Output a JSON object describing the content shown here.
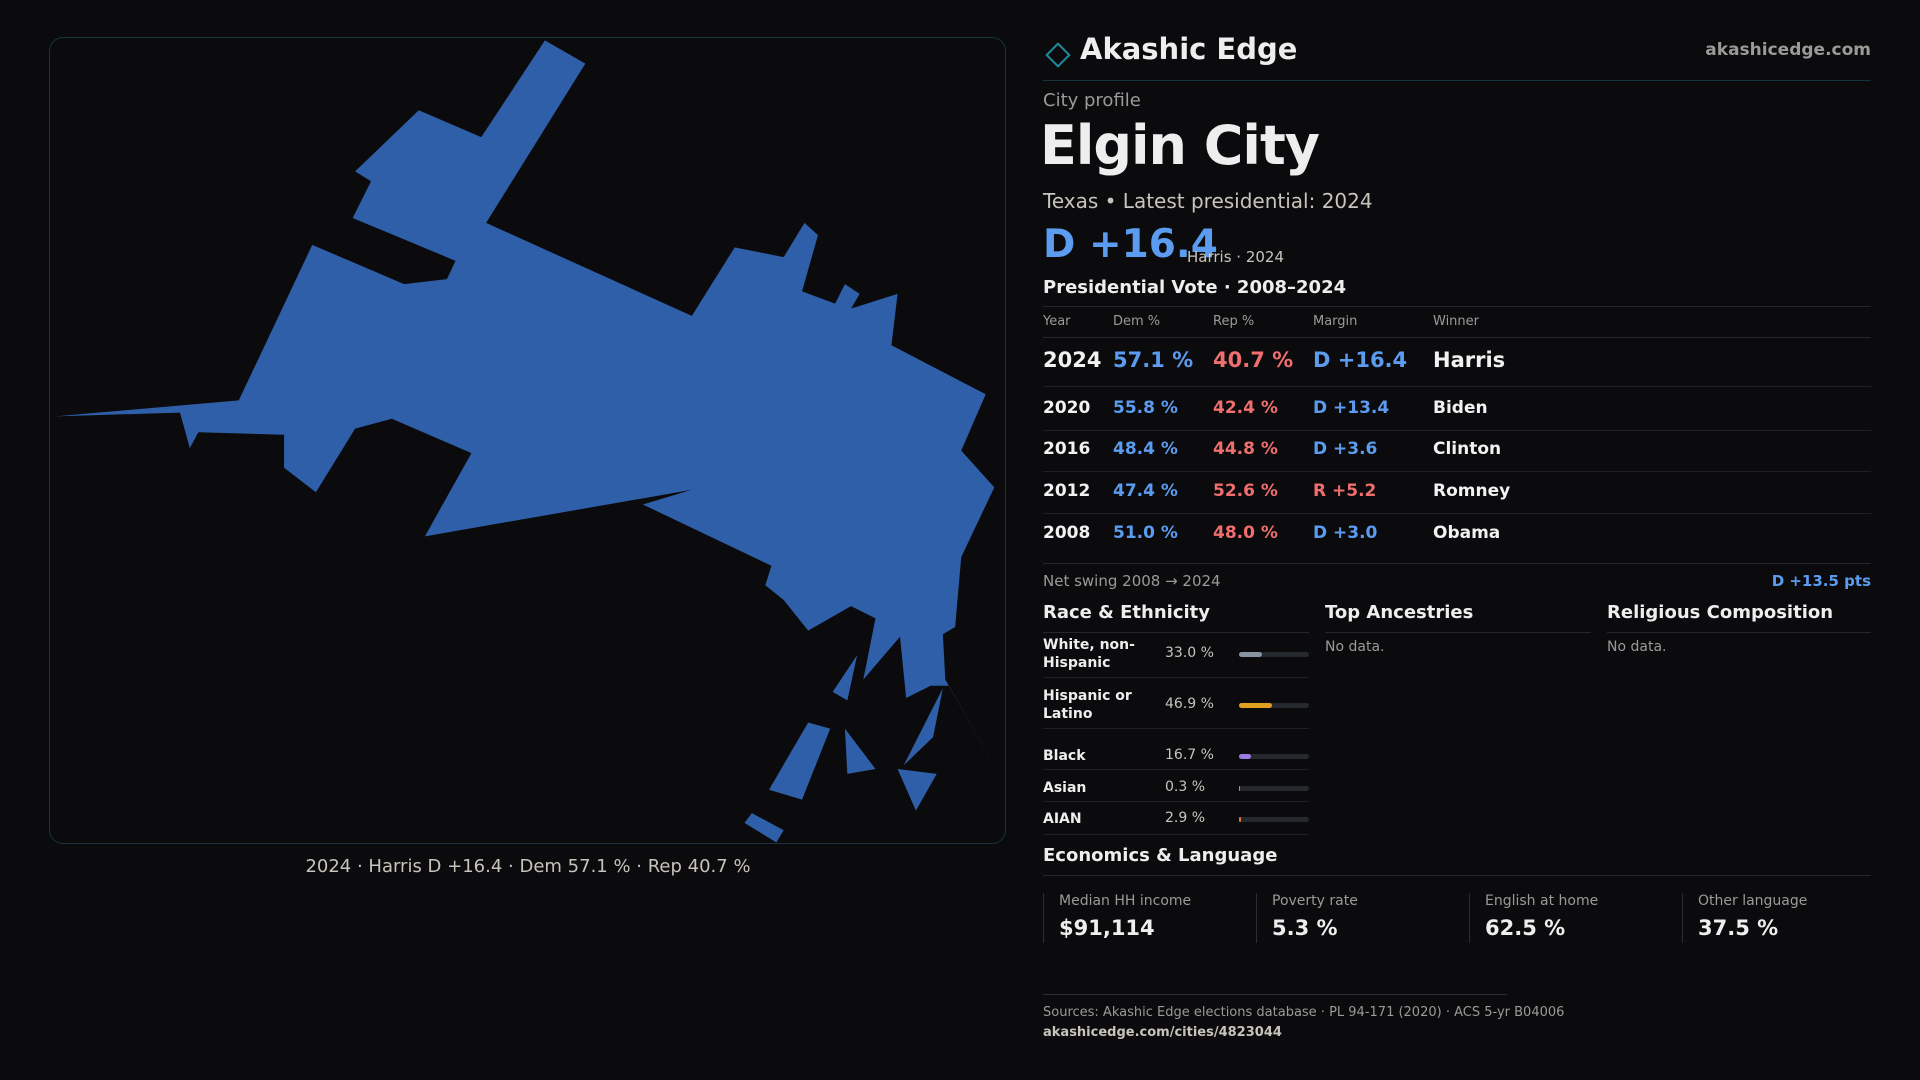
{
  "header": {
    "brand": "Akashic Edge",
    "site": "akashicedge.com"
  },
  "profile": {
    "label": "City profile",
    "title": "Elgin City",
    "subtitle": "Texas • Latest presidential: 2024",
    "headline": "D +16.4",
    "headline_note": "Harris · 2024"
  },
  "map": {
    "caption": "2024 · Harris D +16.4 · Dem 57.1 % · Rep 40.7 %"
  },
  "votes": {
    "title": "Presidential Vote · 2008–2024",
    "columns": [
      "Year",
      "Dem %",
      "Rep %",
      "Margin",
      "Winner"
    ],
    "rows": [
      [
        "2024",
        "57.1 %",
        "40.7 %",
        "D +16.4",
        "Harris"
      ],
      [
        "2020",
        "55.8 %",
        "42.4 %",
        "D +13.4",
        "Biden"
      ],
      [
        "2016",
        "48.4 %",
        "44.8 %",
        "D +3.6",
        "Clinton"
      ],
      [
        "2012",
        "47.4 %",
        "52.6 %",
        "R +5.2",
        "Romney"
      ],
      [
        "2008",
        "51.0 %",
        "48.0 %",
        "D +3.0",
        "Obama"
      ]
    ],
    "swing_label": "Net swing 2008 → 2024",
    "swing_value": "D +13.5 pts"
  },
  "race": {
    "title": "Race & Ethnicity",
    "items": [
      {
        "label": "White, non-Hispanic",
        "value": 33.0,
        "value_label": "33.0 %",
        "color": "#8a93a3"
      },
      {
        "label": "Hispanic or Latino",
        "value": 46.9,
        "value_label": "46.9 %",
        "color": "#e0a020"
      },
      {
        "label": "Black",
        "value": 16.7,
        "value_label": "16.7 %",
        "color": "#9b7be8"
      },
      {
        "label": "Asian",
        "value": 0.3,
        "value_label": "0.3 %",
        "color": "#4fb3c8"
      },
      {
        "label": "AIAN",
        "value": 2.9,
        "value_label": "2.9 %",
        "color": "#e07a3a"
      }
    ]
  },
  "ancestries": {
    "title": "Top Ancestries",
    "empty": "No data."
  },
  "religion": {
    "title": "Religious Composition",
    "empty": "No data."
  },
  "economics": {
    "title": "Economics & Language",
    "stats": [
      {
        "label": "Median HH income",
        "value": "$91,114"
      },
      {
        "label": "Poverty rate",
        "value": "5.3 %"
      },
      {
        "label": "English at home",
        "value": "62.5 %"
      },
      {
        "label": "Other language",
        "value": "37.5 %"
      }
    ]
  },
  "footer": {
    "sources": "Sources: Akashic Edge elections database · PL 94-171 (2020) · ACS 5-yr B04006",
    "url": "akashicedge.com/cities/4823044"
  }
}
